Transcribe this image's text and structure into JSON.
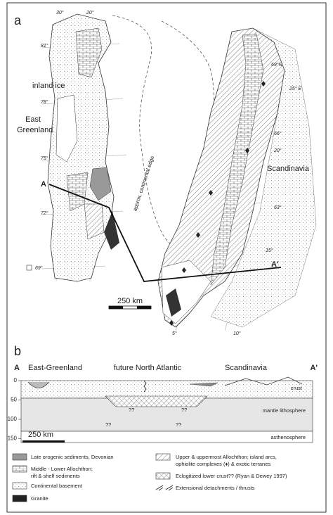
{
  "map": {
    "panel": "a",
    "lon_30": "30°",
    "lon_20_north": "20°",
    "lat_81": "81°",
    "lat_78": "78°",
    "inland_ice": "inland ice",
    "east_greenland_1": "East",
    "east_greenland_2": "Greenland",
    "lat_75": "75°",
    "lat_72": "72°",
    "lat_69": "69°",
    "profile_start": "A",
    "continental_edge": "approx. continental edge",
    "scandinavia": "Scandinavia",
    "lat_69n": "69°N",
    "lon_25e": "25° E",
    "lat_66": "66°",
    "lon_20": "20°",
    "lat_63": "63°",
    "lon_15": "15°",
    "profile_end": "A'",
    "scale": "250 km",
    "lon_5": "5°",
    "lon_10": "10°"
  },
  "section": {
    "panel": "b",
    "start": "A",
    "end": "A'",
    "west": "East-Greenland",
    "middle": "future North Atlantic",
    "east": "Scandinavia",
    "depth_ticks": [
      0,
      50,
      100,
      150
    ],
    "crust": "crust",
    "mantle": "mantle lithosphere",
    "asthenosphere": "asthenosphere",
    "unknowns": [
      "??",
      "??",
      "??",
      "??"
    ],
    "scale": "250 km"
  },
  "legend": {
    "late_orogenic": "Late orogenic sediments, Devonian",
    "middle_lower_1": "Middle - Lower Allochthon;",
    "middle_lower_2": "rift & shelf sediments",
    "basement": "Continental basement",
    "granite": "Granite",
    "upper_1": "Upper & uppermost Allochthon; island arcs,",
    "upper_2": "ophiolite complexes (♦) & exotic terranes",
    "eclogite": "Eclogitized lower crust?? (Ryan & Dewey 1997)",
    "detachments": "Extensional detachments / thrusts"
  }
}
